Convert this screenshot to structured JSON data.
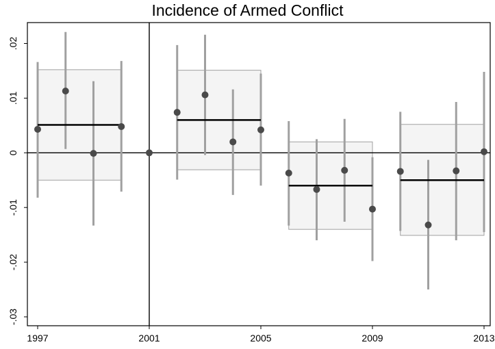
{
  "chart_data": {
    "type": "scatter",
    "title": "Incidence of Armed Conflict",
    "xlabel": "",
    "ylabel": "",
    "xlim": [
      1997,
      2013
    ],
    "ylim": [
      -0.03,
      0.023
    ],
    "x_ticks": [
      1997,
      2001,
      2005,
      2009,
      2013
    ],
    "x_tick_labels": [
      "1997",
      "2001",
      "2005",
      "2009",
      "2013"
    ],
    "y_ticks": [
      -0.03,
      -0.02,
      -0.01,
      0,
      0.01,
      0.02
    ],
    "y_tick_labels": [
      "-.03",
      "-.02",
      "-.01",
      "0",
      ".01",
      ".02"
    ],
    "reference_lines": {
      "horizontal_y": 0,
      "vertical_x": 2001
    },
    "grid": false,
    "points": [
      {
        "x": 1997,
        "y": 0.0043,
        "ci": [
          -0.0082,
          0.0166
        ]
      },
      {
        "x": 1998,
        "y": 0.0113,
        "ci": [
          0.0007,
          0.0221
        ]
      },
      {
        "x": 1999,
        "y": -0.0001,
        "ci": [
          -0.0133,
          0.0131
        ]
      },
      {
        "x": 2000,
        "y": 0.0048,
        "ci": [
          -0.0071,
          0.0168
        ]
      },
      {
        "x": 2001,
        "y": 0.0,
        "ci": null
      },
      {
        "x": 2002,
        "y": 0.0074,
        "ci": [
          -0.0049,
          0.0197
        ]
      },
      {
        "x": 2003,
        "y": 0.0106,
        "ci": [
          -0.0004,
          0.0216
        ]
      },
      {
        "x": 2004,
        "y": 0.002,
        "ci": [
          -0.0077,
          0.0116
        ]
      },
      {
        "x": 2005,
        "y": 0.0042,
        "ci": [
          -0.006,
          0.0145
        ]
      },
      {
        "x": 2006,
        "y": -0.0037,
        "ci": [
          -0.0133,
          0.0058
        ]
      },
      {
        "x": 2007,
        "y": -0.0067,
        "ci": [
          -0.016,
          0.0025
        ]
      },
      {
        "x": 2008,
        "y": -0.0032,
        "ci": [
          -0.0126,
          0.0062
        ]
      },
      {
        "x": 2009,
        "y": -0.0103,
        "ci": [
          -0.0198,
          -0.0008
        ]
      },
      {
        "x": 2010,
        "y": -0.0034,
        "ci": [
          -0.0143,
          0.0075
        ]
      },
      {
        "x": 2011,
        "y": -0.0132,
        "ci": [
          -0.025,
          -0.0013
        ]
      },
      {
        "x": 2012,
        "y": -0.0033,
        "ci": [
          -0.016,
          0.0093
        ]
      },
      {
        "x": 2013,
        "y": 0.0002,
        "ci": [
          -0.0145,
          0.0148
        ]
      }
    ],
    "period_bands": [
      {
        "x_start": 1997,
        "x_end": 2000,
        "mean": 0.0051,
        "low": -0.005,
        "high": 0.0152
      },
      {
        "x_start": 2002,
        "x_end": 2005,
        "mean": 0.006,
        "low": -0.0031,
        "high": 0.0151
      },
      {
        "x_start": 2006,
        "x_end": 2009,
        "mean": -0.006,
        "low": -0.014,
        "high": 0.002
      },
      {
        "x_start": 2010,
        "x_end": 2013,
        "mean": -0.005,
        "low": -0.0151,
        "high": 0.0052
      }
    ],
    "colors": {
      "point": "#4a4a4a",
      "ci_line": "#a0a0a0",
      "band_fill": "#f4f4f4",
      "band_edge": "#a0a0a0",
      "mean_line": "#000000",
      "axis": "#000000"
    }
  }
}
